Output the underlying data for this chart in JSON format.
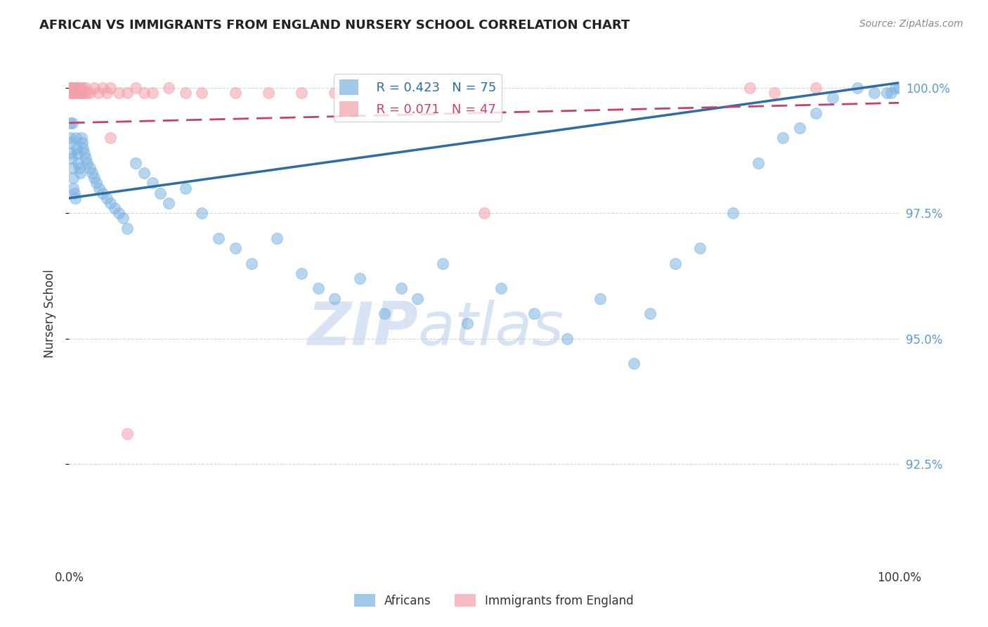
{
  "title": "AFRICAN VS IMMIGRANTS FROM ENGLAND NURSERY SCHOOL CORRELATION CHART",
  "source": "Source: ZipAtlas.com",
  "ylabel": "Nursery School",
  "xlim": [
    0.0,
    1.0
  ],
  "ylim": [
    0.905,
    1.005
  ],
  "yticks": [
    0.925,
    0.95,
    0.975,
    1.0
  ],
  "ytick_labels": [
    "92.5%",
    "95.0%",
    "97.5%",
    "100.0%"
  ],
  "legend_blue_R": "R = 0.423",
  "legend_blue_N": "N = 75",
  "legend_pink_R": "R = 0.071",
  "legend_pink_N": "N = 47",
  "blue_color": "#7ab3e0",
  "pink_color": "#f4a0aa",
  "blue_line_color": "#2e6da4",
  "pink_line_color": "#c94070",
  "watermark_zip": "ZIP",
  "watermark_atlas": "atlas",
  "background_color": "#ffffff",
  "grid_color": "#cccccc",
  "blue_x": [
    0.001,
    0.001,
    0.002,
    0.002,
    0.003,
    0.004,
    0.004,
    0.005,
    0.005,
    0.006,
    0.007,
    0.008,
    0.009,
    0.01,
    0.011,
    0.012,
    0.013,
    0.015,
    0.016,
    0.017,
    0.018,
    0.02,
    0.022,
    0.025,
    0.028,
    0.03,
    0.033,
    0.036,
    0.04,
    0.045,
    0.05,
    0.055,
    0.06,
    0.065,
    0.07,
    0.08,
    0.09,
    0.1,
    0.11,
    0.12,
    0.14,
    0.16,
    0.18,
    0.2,
    0.22,
    0.25,
    0.28,
    0.3,
    0.32,
    0.35,
    0.38,
    0.4,
    0.42,
    0.45,
    0.48,
    0.52,
    0.56,
    0.6,
    0.64,
    0.68,
    0.7,
    0.73,
    0.76,
    0.8,
    0.83,
    0.86,
    0.88,
    0.9,
    0.92,
    0.95,
    0.97,
    0.985,
    0.99,
    0.995,
    1.0
  ],
  "blue_y": [
    0.993,
    0.99,
    0.989,
    0.987,
    0.986,
    0.993,
    0.984,
    0.982,
    0.98,
    0.979,
    0.978,
    0.99,
    0.988,
    0.987,
    0.985,
    0.984,
    0.983,
    0.99,
    0.989,
    0.988,
    0.987,
    0.986,
    0.985,
    0.984,
    0.983,
    0.982,
    0.981,
    0.98,
    0.979,
    0.978,
    0.977,
    0.976,
    0.975,
    0.974,
    0.972,
    0.985,
    0.983,
    0.981,
    0.979,
    0.977,
    0.98,
    0.975,
    0.97,
    0.968,
    0.965,
    0.97,
    0.963,
    0.96,
    0.958,
    0.962,
    0.955,
    0.96,
    0.958,
    0.965,
    0.953,
    0.96,
    0.955,
    0.95,
    0.958,
    0.945,
    0.955,
    0.965,
    0.968,
    0.975,
    0.985,
    0.99,
    0.992,
    0.995,
    0.998,
    1.0,
    0.999,
    0.999,
    0.999,
    1.0,
    1.0
  ],
  "pink_x": [
    0.001,
    0.001,
    0.002,
    0.002,
    0.003,
    0.003,
    0.004,
    0.005,
    0.006,
    0.007,
    0.008,
    0.009,
    0.01,
    0.011,
    0.012,
    0.013,
    0.014,
    0.015,
    0.016,
    0.017,
    0.018,
    0.02,
    0.022,
    0.025,
    0.03,
    0.035,
    0.04,
    0.045,
    0.05,
    0.06,
    0.07,
    0.08,
    0.09,
    0.1,
    0.12,
    0.14,
    0.16,
    0.2,
    0.24,
    0.28,
    0.32,
    0.5,
    0.82,
    0.85,
    0.9,
    0.07,
    0.05
  ],
  "pink_y": [
    1.0,
    0.999,
    1.0,
    0.999,
    1.0,
    0.999,
    1.0,
    0.999,
    1.0,
    0.999,
    1.0,
    0.999,
    1.0,
    0.999,
    1.0,
    0.999,
    0.999,
    1.0,
    0.999,
    1.0,
    0.999,
    1.0,
    0.999,
    0.999,
    1.0,
    0.999,
    1.0,
    0.999,
    1.0,
    0.999,
    0.999,
    1.0,
    0.999,
    0.999,
    1.0,
    0.999,
    0.999,
    0.999,
    0.999,
    0.999,
    0.999,
    0.975,
    1.0,
    0.999,
    1.0,
    0.931,
    0.99
  ],
  "blue_line_x": [
    0.0,
    1.0
  ],
  "blue_line_y": [
    0.978,
    1.001
  ],
  "pink_line_x": [
    0.0,
    1.0
  ],
  "pink_line_y": [
    0.993,
    0.997
  ]
}
